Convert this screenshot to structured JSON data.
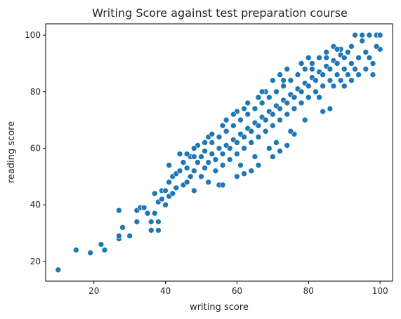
{
  "chart_data": {
    "type": "scatter",
    "title": "Writing Score against test preparation course",
    "xlabel": "writing score",
    "ylabel": "reading score",
    "xlim": [
      6.5,
      103.5
    ],
    "ylim": [
      13,
      104
    ],
    "x_ticks": [
      20,
      40,
      60,
      80,
      100
    ],
    "y_ticks": [
      20,
      40,
      60,
      80,
      100
    ],
    "grid": false,
    "legend": "none",
    "marker_color": "#1f77b4",
    "marker_edge_color": "#ffffff",
    "series": [
      {
        "points": [
          [
            10,
            17
          ],
          [
            15,
            24
          ],
          [
            19,
            23
          ],
          [
            22,
            26
          ],
          [
            23,
            24
          ],
          [
            27,
            28
          ],
          [
            27,
            29
          ],
          [
            27,
            38
          ],
          [
            28,
            32
          ],
          [
            30,
            29
          ],
          [
            32,
            34
          ],
          [
            32,
            38
          ],
          [
            33,
            39
          ],
          [
            34,
            39
          ],
          [
            35,
            37
          ],
          [
            36,
            31
          ],
          [
            36,
            34
          ],
          [
            37,
            44
          ],
          [
            37,
            37
          ],
          [
            38,
            31
          ],
          [
            38,
            34
          ],
          [
            38,
            41
          ],
          [
            39,
            42
          ],
          [
            39,
            45
          ],
          [
            40,
            40
          ],
          [
            40,
            45
          ],
          [
            41,
            43
          ],
          [
            41,
            48
          ],
          [
            41,
            54
          ],
          [
            42,
            44
          ],
          [
            42,
            50
          ],
          [
            43,
            46
          ],
          [
            43,
            51
          ],
          [
            44,
            52
          ],
          [
            44,
            58
          ],
          [
            45,
            47
          ],
          [
            45,
            55
          ],
          [
            46,
            48
          ],
          [
            46,
            53
          ],
          [
            47,
            50
          ],
          [
            47,
            57
          ],
          [
            48,
            45
          ],
          [
            48,
            52
          ],
          [
            49,
            55
          ],
          [
            49,
            61
          ],
          [
            50,
            50
          ],
          [
            50,
            57
          ],
          [
            51,
            53
          ],
          [
            51,
            59
          ],
          [
            52,
            48
          ],
          [
            52,
            55
          ],
          [
            53,
            58
          ],
          [
            53,
            62
          ],
          [
            54,
            52
          ],
          [
            54,
            56
          ],
          [
            55,
            60
          ],
          [
            55,
            64
          ],
          [
            56,
            54
          ],
          [
            56,
            58
          ],
          [
            57,
            61
          ],
          [
            57,
            66
          ],
          [
            58,
            56
          ],
          [
            58,
            60
          ],
          [
            59,
            63
          ],
          [
            59,
            68
          ],
          [
            60,
            58
          ],
          [
            60,
            62
          ],
          [
            61,
            65
          ],
          [
            61,
            70
          ],
          [
            62,
            60
          ],
          [
            62,
            64
          ],
          [
            63,
            67
          ],
          [
            63,
            72
          ],
          [
            64,
            62
          ],
          [
            64,
            66
          ],
          [
            65,
            69
          ],
          [
            65,
            74
          ],
          [
            66,
            64
          ],
          [
            66,
            68
          ],
          [
            67,
            71
          ],
          [
            67,
            76
          ],
          [
            68,
            66
          ],
          [
            68,
            70
          ],
          [
            69,
            73
          ],
          [
            69,
            78
          ],
          [
            70,
            68
          ],
          [
            70,
            72
          ],
          [
            71,
            75
          ],
          [
            71,
            80
          ],
          [
            72,
            70
          ],
          [
            72,
            74
          ],
          [
            73,
            77
          ],
          [
            73,
            82
          ],
          [
            74,
            72
          ],
          [
            74,
            76
          ],
          [
            75,
            79
          ],
          [
            75,
            84
          ],
          [
            76,
            74
          ],
          [
            76,
            78
          ],
          [
            77,
            81
          ],
          [
            77,
            86
          ],
          [
            78,
            76
          ],
          [
            78,
            80
          ],
          [
            79,
            83
          ],
          [
            79,
            88
          ],
          [
            80,
            78
          ],
          [
            80,
            82
          ],
          [
            81,
            85
          ],
          [
            81,
            90
          ],
          [
            82,
            80
          ],
          [
            82,
            84
          ],
          [
            83,
            87
          ],
          [
            83,
            92
          ],
          [
            84,
            82
          ],
          [
            84,
            86
          ],
          [
            85,
            89
          ],
          [
            85,
            94
          ],
          [
            86,
            84
          ],
          [
            86,
            88
          ],
          [
            87,
            91
          ],
          [
            87,
            96
          ],
          [
            88,
            86
          ],
          [
            88,
            90
          ],
          [
            89,
            93
          ],
          [
            89,
            95
          ],
          [
            90,
            88
          ],
          [
            90,
            92
          ],
          [
            91,
            94
          ],
          [
            92,
            90
          ],
          [
            92,
            96
          ],
          [
            93,
            100
          ],
          [
            94,
            92
          ],
          [
            95,
            98
          ],
          [
            95,
            100
          ],
          [
            96,
            94
          ],
          [
            97,
            100
          ],
          [
            98,
            86
          ],
          [
            98,
            90
          ],
          [
            99,
            100
          ],
          [
            100,
            95
          ],
          [
            100,
            100
          ],
          [
            55,
            47
          ],
          [
            56,
            47
          ],
          [
            60,
            50
          ],
          [
            62,
            51
          ],
          [
            64,
            52
          ],
          [
            66,
            54
          ],
          [
            70,
            57
          ],
          [
            72,
            59
          ],
          [
            74,
            61
          ],
          [
            76,
            65
          ],
          [
            84,
            73
          ],
          [
            86,
            74
          ],
          [
            90,
            82
          ],
          [
            92,
            84
          ],
          [
            94,
            86
          ],
          [
            96,
            88
          ],
          [
            46,
            58
          ],
          [
            48,
            60
          ],
          [
            52,
            64
          ],
          [
            56,
            68
          ],
          [
            60,
            73
          ],
          [
            62,
            74
          ],
          [
            66,
            78
          ],
          [
            68,
            80
          ],
          [
            70,
            84
          ],
          [
            72,
            86
          ],
          [
            74,
            88
          ],
          [
            78,
            90
          ],
          [
            80,
            92
          ],
          [
            61,
            54
          ],
          [
            65,
            57
          ],
          [
            69,
            60
          ],
          [
            71,
            62
          ],
          [
            75,
            66
          ],
          [
            79,
            70
          ],
          [
            48,
            57
          ],
          [
            51,
            62
          ],
          [
            53,
            65
          ],
          [
            57,
            70
          ],
          [
            59,
            72
          ],
          [
            63,
            76
          ],
          [
            67,
            80
          ],
          [
            73,
            84
          ],
          [
            77,
            86
          ],
          [
            81,
            88
          ],
          [
            85,
            92
          ],
          [
            88,
            95
          ],
          [
            83,
            78
          ],
          [
            87,
            82
          ],
          [
            89,
            84
          ],
          [
            91,
            86
          ],
          [
            93,
            88
          ],
          [
            97,
            92
          ],
          [
            99,
            96
          ]
        ]
      }
    ]
  }
}
